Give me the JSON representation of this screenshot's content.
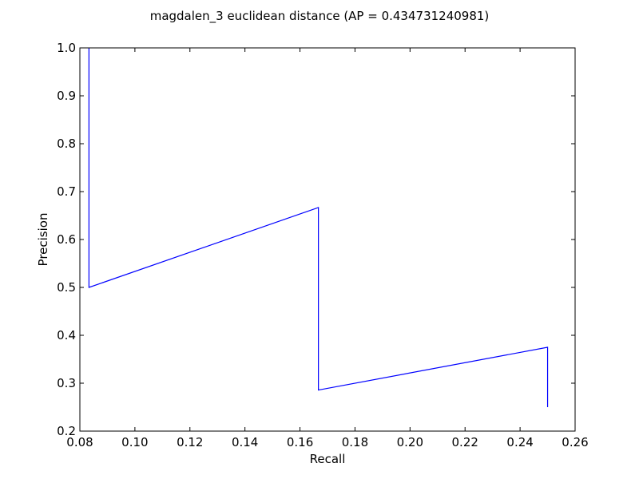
{
  "chart_data": {
    "type": "line",
    "title": "magdalen_3 euclidean distance  (AP = 0.434731240981)",
    "xlabel": "Recall",
    "ylabel": "Precision",
    "xlim": [
      0.08,
      0.26
    ],
    "ylim": [
      0.2,
      1.0
    ],
    "grid": false,
    "xticks": [
      0.08,
      0.1,
      0.12,
      0.14,
      0.16,
      0.18,
      0.2,
      0.22,
      0.24,
      0.26
    ],
    "xtick_labels": [
      "0.08",
      "0.10",
      "0.12",
      "0.14",
      "0.16",
      "0.18",
      "0.20",
      "0.22",
      "0.24",
      "0.26"
    ],
    "yticks": [
      0.2,
      0.3,
      0.4,
      0.5,
      0.6,
      0.7,
      0.8,
      0.9,
      1.0
    ],
    "ytick_labels": [
      "0.2",
      "0.3",
      "0.4",
      "0.5",
      "0.6",
      "0.7",
      "0.8",
      "0.9",
      "1.0"
    ],
    "series": [
      {
        "color": "#0000ff",
        "x": [
          0.0833,
          0.0833,
          0.1667,
          0.1667,
          0.25,
          0.25
        ],
        "y": [
          1.0,
          0.5,
          0.6667,
          0.2857,
          0.375,
          0.25
        ]
      }
    ]
  }
}
